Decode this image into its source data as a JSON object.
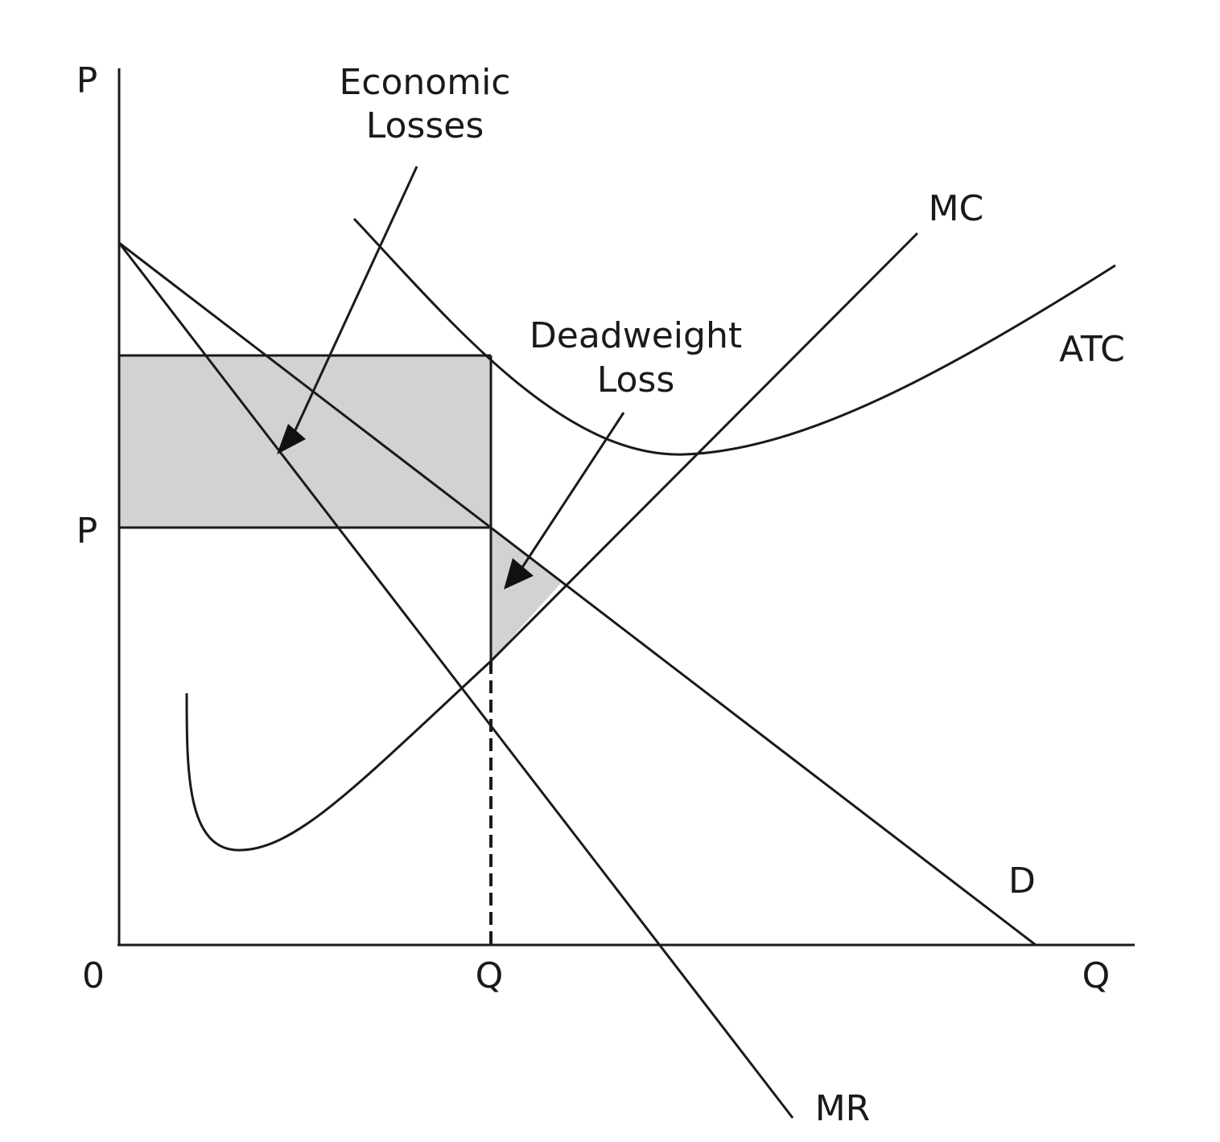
{
  "axes": {
    "y_label": "P",
    "x_label": "Q",
    "origin_label": "0",
    "price_tick_label": "P",
    "quantity_tick_label": "Q"
  },
  "curves": {
    "mc_label": "MC",
    "atc_label": "ATC",
    "demand_label": "D",
    "mr_label": "MR"
  },
  "annotations": {
    "economic_losses_line1": "Economic",
    "economic_losses_line2": "Losses",
    "deadweight_loss_line1": "Deadweight",
    "deadweight_loss_line2": "Loss"
  },
  "colors": {
    "line": "#1a1a1a",
    "shaded_area": "#d1d2d4",
    "background": "#ffffff"
  }
}
